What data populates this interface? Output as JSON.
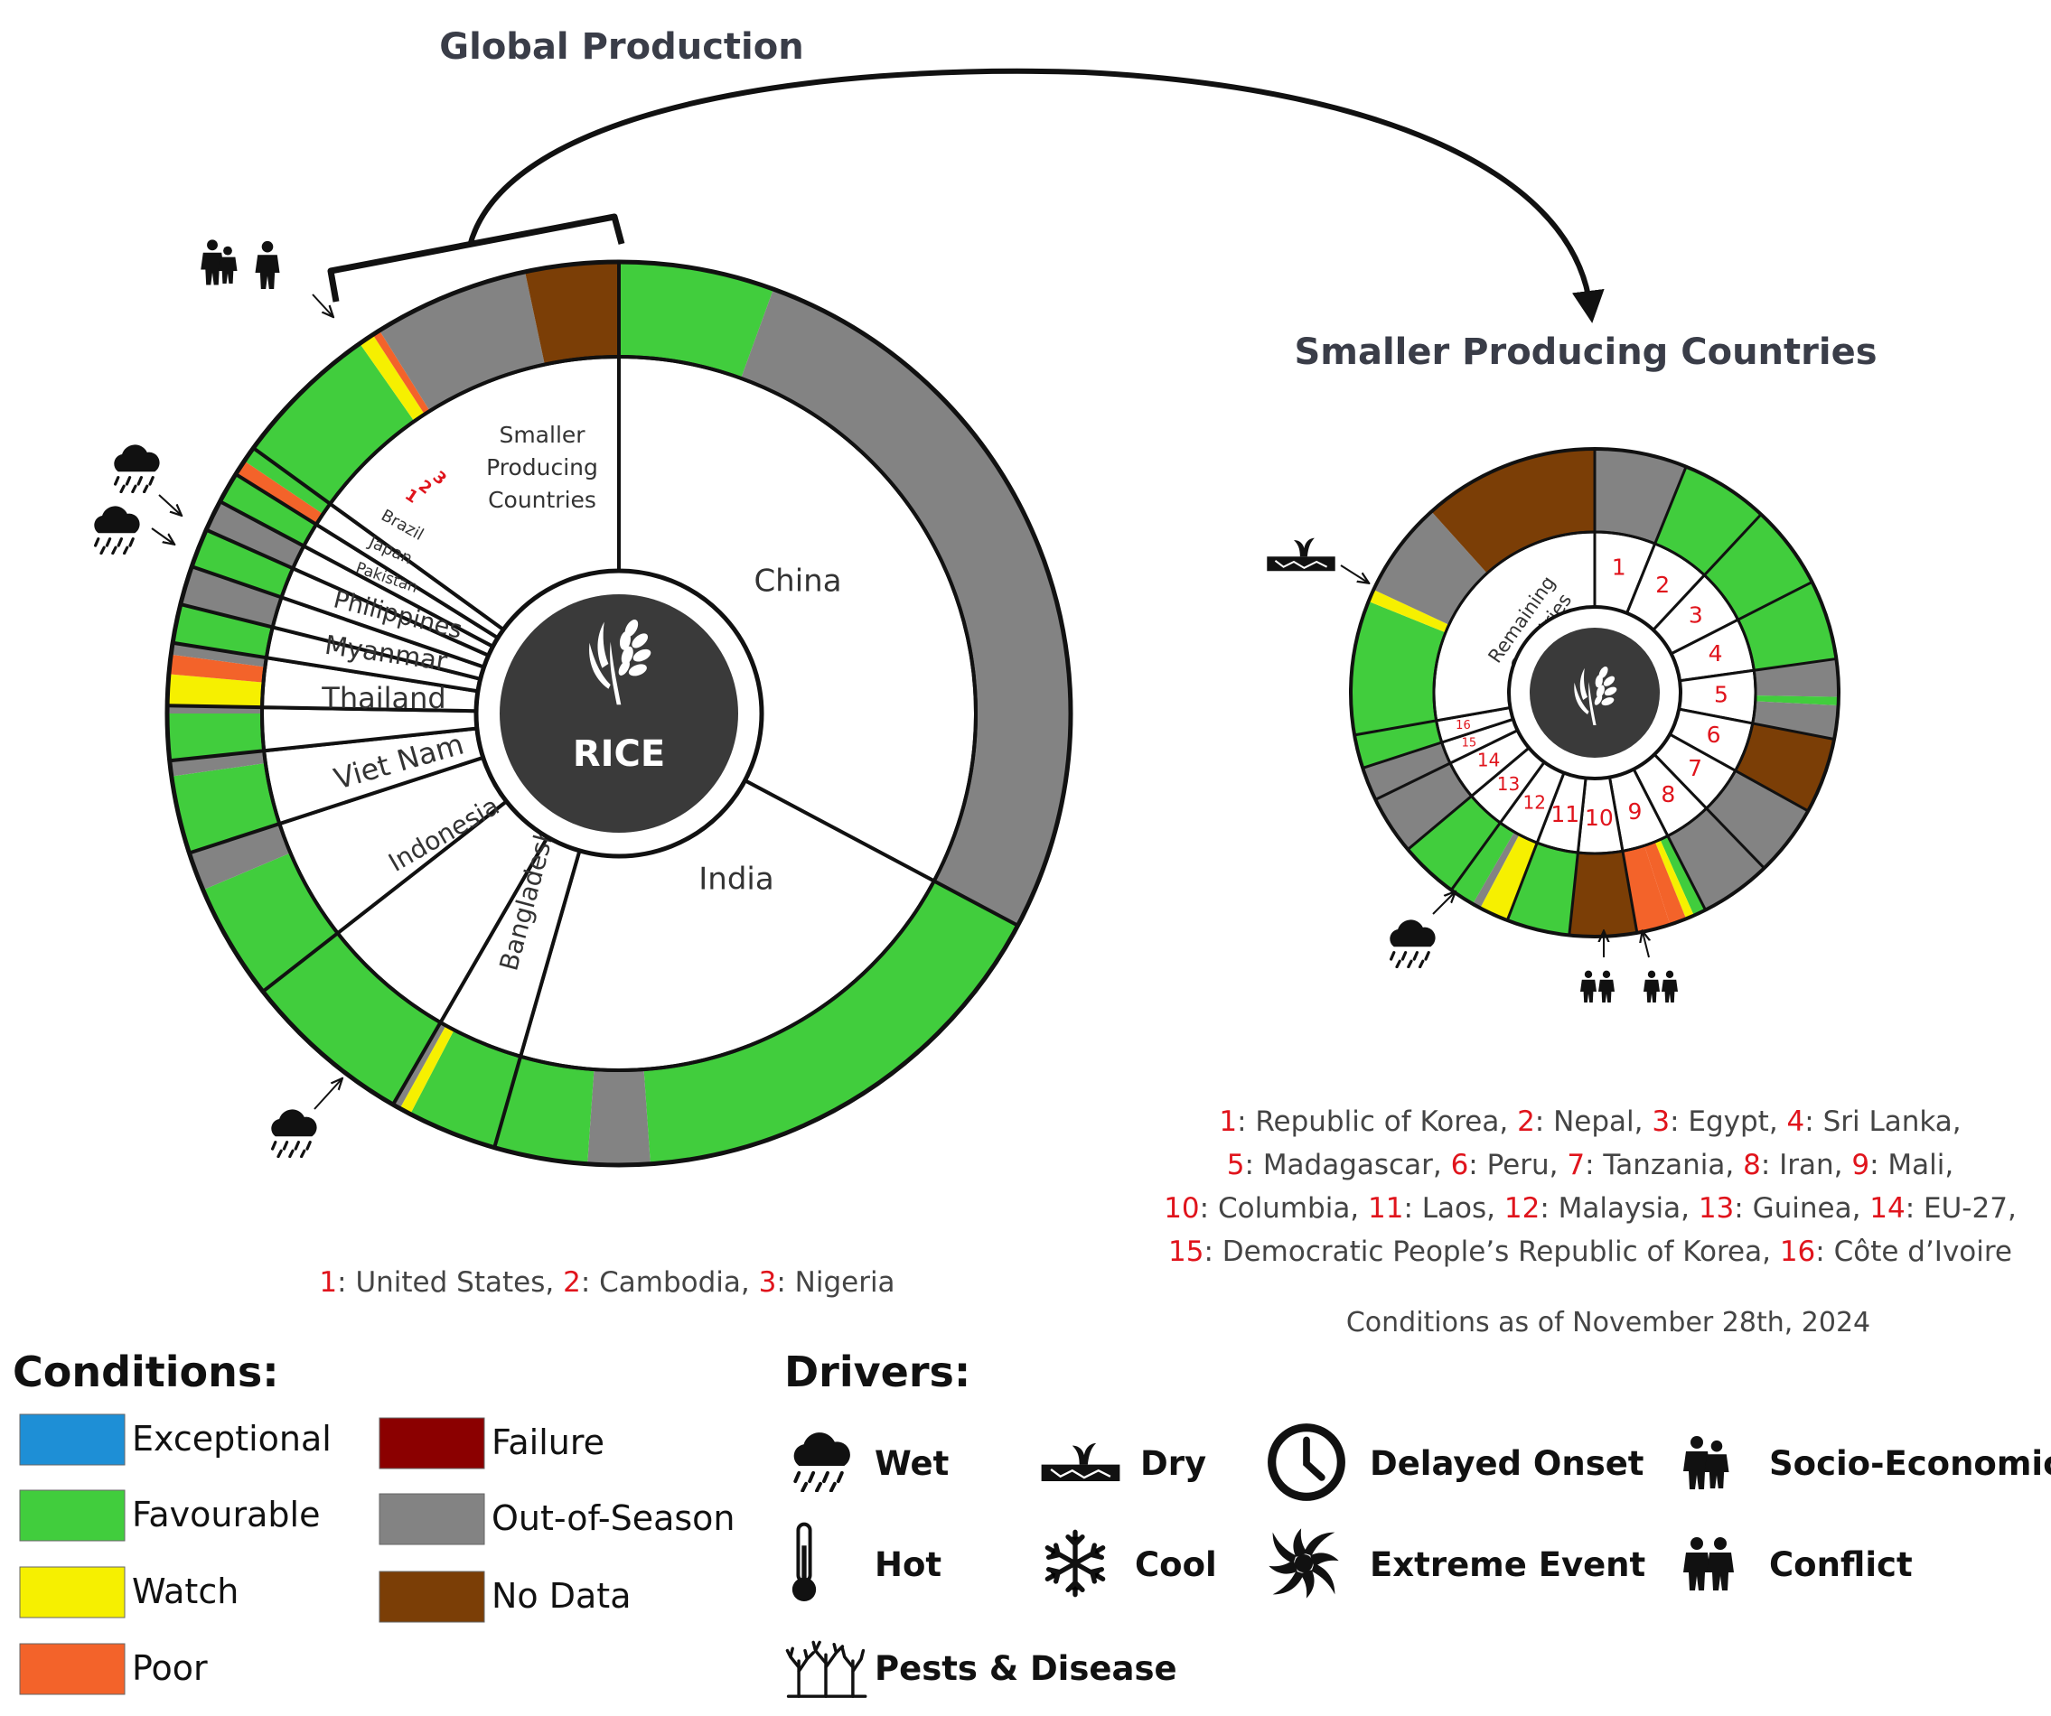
{
  "colors": {
    "exceptional": "#1e8fd6",
    "favourable": "#41cd3d",
    "watch": "#f6f000",
    "poor": "#f3632a",
    "failure": "#8b0000",
    "out_of_season": "#838383",
    "no_data": "#7b3e06",
    "center": "#3a3a3a",
    "number_red": "#e0141c"
  },
  "titles": {
    "global": "Global Production",
    "smaller": "Smaller Producing Countries",
    "center_label": "RICE"
  },
  "chart_data": [
    {
      "type": "pie",
      "name": "Global Production",
      "inner_ring_countries": [
        {
          "label": "China",
          "start_deg": 0,
          "end_deg": 118
        },
        {
          "label": "India",
          "start_deg": 118,
          "end_deg": 196
        },
        {
          "label": "Bangladesh",
          "start_deg": 196,
          "end_deg": 210
        },
        {
          "label": "Indonesia",
          "start_deg": 210,
          "end_deg": 232
        },
        {
          "label": "Viet Nam",
          "start_deg": 232,
          "end_deg": 252
        },
        {
          "label": "Thailand",
          "start_deg": 252,
          "end_deg": 264
        },
        {
          "label": "Myanmar",
          "start_deg": 264,
          "end_deg": 271
        },
        {
          "label": "Philippines",
          "start_deg": 271,
          "end_deg": 279
        },
        {
          "label": "Pakistan",
          "start_deg": 279,
          "end_deg": 284
        },
        {
          "label": "Japan",
          "start_deg": 284,
          "end_deg": 289
        },
        {
          "label": "Brazil",
          "start_deg": 289,
          "end_deg": 294
        },
        {
          "label": "1",
          "start_deg": 294,
          "end_deg": 298
        },
        {
          "label": "2",
          "start_deg": 298,
          "end_deg": 302
        },
        {
          "label": "3",
          "start_deg": 302,
          "end_deg": 306
        },
        {
          "label": "Smaller Producing Countries",
          "start_deg": 306,
          "end_deg": 360
        }
      ],
      "outer_ring_conditions": [
        {
          "start_deg": 0,
          "end_deg": 20,
          "condition": "favourable"
        },
        {
          "start_deg": 20,
          "end_deg": 118,
          "condition": "out_of_season"
        },
        {
          "start_deg": 118,
          "end_deg": 176,
          "condition": "favourable"
        },
        {
          "start_deg": 176,
          "end_deg": 184,
          "condition": "out_of_season"
        },
        {
          "start_deg": 184,
          "end_deg": 207.5,
          "condition": "favourable"
        },
        {
          "start_deg": 207.5,
          "end_deg": 209,
          "condition": "watch"
        },
        {
          "start_deg": 209,
          "end_deg": 210,
          "condition": "out_of_season"
        },
        {
          "start_deg": 210,
          "end_deg": 232,
          "condition": "favourable"
        },
        {
          "start_deg": 232,
          "end_deg": 247,
          "condition": "favourable"
        },
        {
          "start_deg": 247,
          "end_deg": 252,
          "condition": "out_of_season"
        },
        {
          "start_deg": 252,
          "end_deg": 262,
          "condition": "favourable"
        },
        {
          "start_deg": 262,
          "end_deg": 264,
          "condition": "out_of_season"
        },
        {
          "start_deg": 264,
          "end_deg": 270,
          "condition": "favourable"
        },
        {
          "start_deg": 270,
          "end_deg": 271,
          "condition": "out_of_season"
        },
        {
          "start_deg": 271,
          "end_deg": 275,
          "condition": "watch"
        },
        {
          "start_deg": 275,
          "end_deg": 277.5,
          "condition": "poor"
        },
        {
          "start_deg": 277.5,
          "end_deg": 279,
          "condition": "out_of_season"
        },
        {
          "start_deg": 279,
          "end_deg": 284,
          "condition": "favourable"
        },
        {
          "start_deg": 284,
          "end_deg": 289,
          "condition": "out_of_season"
        },
        {
          "start_deg": 289,
          "end_deg": 294,
          "condition": "favourable"
        },
        {
          "start_deg": 294,
          "end_deg": 298,
          "condition": "out_of_season"
        },
        {
          "start_deg": 298,
          "end_deg": 302,
          "condition": "favourable"
        },
        {
          "start_deg": 302,
          "end_deg": 304,
          "condition": "poor"
        },
        {
          "start_deg": 304,
          "end_deg": 306,
          "condition": "favourable"
        },
        {
          "start_deg": 306,
          "end_deg": 325,
          "condition": "favourable"
        },
        {
          "start_deg": 325,
          "end_deg": 327,
          "condition": "watch"
        },
        {
          "start_deg": 327,
          "end_deg": 328,
          "condition": "poor"
        },
        {
          "start_deg": 328,
          "end_deg": 348,
          "condition": "out_of_season"
        },
        {
          "start_deg": 348,
          "end_deg": 360,
          "condition": "no_data"
        }
      ],
      "driver_markers": [
        {
          "driver": "socio-economic",
          "at_deg": 305
        },
        {
          "driver": "conflict",
          "at_deg": 305
        },
        {
          "driver": "wet",
          "at_deg": 283
        },
        {
          "driver": "wet",
          "at_deg": 276
        },
        {
          "driver": "wet",
          "at_deg": 209
        }
      ],
      "key": [
        {
          "num": "1",
          "text": ": United States, "
        },
        {
          "num": "2",
          "text": ": Cambodia, "
        },
        {
          "num": "3",
          "text": ": Nigeria"
        }
      ]
    },
    {
      "type": "pie",
      "name": "Smaller Producing Countries",
      "inner_ring_countries": [
        {
          "label": "1",
          "start_deg": 0,
          "end_deg": 22
        },
        {
          "label": "2",
          "start_deg": 22,
          "end_deg": 43
        },
        {
          "label": "3",
          "start_deg": 43,
          "end_deg": 63
        },
        {
          "label": "4",
          "start_deg": 63,
          "end_deg": 82
        },
        {
          "label": "5",
          "start_deg": 82,
          "end_deg": 101
        },
        {
          "label": "6",
          "start_deg": 101,
          "end_deg": 119
        },
        {
          "label": "7",
          "start_deg": 119,
          "end_deg": 136
        },
        {
          "label": "8",
          "start_deg": 136,
          "end_deg": 153
        },
        {
          "label": "9",
          "start_deg": 153,
          "end_deg": 170
        },
        {
          "label": "10",
          "start_deg": 170,
          "end_deg": 186
        },
        {
          "label": "11",
          "start_deg": 186,
          "end_deg": 201
        },
        {
          "label": "12",
          "start_deg": 201,
          "end_deg": 216
        },
        {
          "label": "13",
          "start_deg": 216,
          "end_deg": 230
        },
        {
          "label": "14",
          "start_deg": 230,
          "end_deg": 244
        },
        {
          "label": "15",
          "start_deg": 244,
          "end_deg": 252
        },
        {
          "label": "16",
          "start_deg": 252,
          "end_deg": 260
        },
        {
          "label": "Remaining Countries",
          "start_deg": 260,
          "end_deg": 360
        }
      ],
      "outer_ring_conditions": [
        {
          "start_deg": 0,
          "end_deg": 22,
          "condition": "out_of_season"
        },
        {
          "start_deg": 22,
          "end_deg": 43,
          "condition": "favourable"
        },
        {
          "start_deg": 43,
          "end_deg": 63,
          "condition": "favourable"
        },
        {
          "start_deg": 63,
          "end_deg": 82,
          "condition": "favourable"
        },
        {
          "start_deg": 82,
          "end_deg": 91,
          "condition": "out_of_season"
        },
        {
          "start_deg": 91,
          "end_deg": 93,
          "condition": "favourable"
        },
        {
          "start_deg": 93,
          "end_deg": 101,
          "condition": "out_of_season"
        },
        {
          "start_deg": 101,
          "end_deg": 119,
          "condition": "no_data"
        },
        {
          "start_deg": 119,
          "end_deg": 136,
          "condition": "out_of_season"
        },
        {
          "start_deg": 136,
          "end_deg": 153,
          "condition": "out_of_season"
        },
        {
          "start_deg": 153,
          "end_deg": 156,
          "condition": "favourable"
        },
        {
          "start_deg": 156,
          "end_deg": 158,
          "condition": "watch"
        },
        {
          "start_deg": 158,
          "end_deg": 162,
          "condition": "poor"
        },
        {
          "start_deg": 162,
          "end_deg": 170,
          "condition": "poor"
        },
        {
          "start_deg": 170,
          "end_deg": 186,
          "condition": "no_data"
        },
        {
          "start_deg": 186,
          "end_deg": 201,
          "condition": "favourable"
        },
        {
          "start_deg": 201,
          "end_deg": 208,
          "condition": "watch"
        },
        {
          "start_deg": 208,
          "end_deg": 210,
          "condition": "out_of_season"
        },
        {
          "start_deg": 210,
          "end_deg": 216,
          "condition": "favourable"
        },
        {
          "start_deg": 216,
          "end_deg": 230,
          "condition": "favourable"
        },
        {
          "start_deg": 230,
          "end_deg": 244,
          "condition": "out_of_season"
        },
        {
          "start_deg": 244,
          "end_deg": 252,
          "condition": "out_of_season"
        },
        {
          "start_deg": 252,
          "end_deg": 260,
          "condition": "favourable"
        },
        {
          "start_deg": 260,
          "end_deg": 292,
          "condition": "favourable"
        },
        {
          "start_deg": 292,
          "end_deg": 295,
          "condition": "watch"
        },
        {
          "start_deg": 295,
          "end_deg": 318,
          "condition": "out_of_season"
        },
        {
          "start_deg": 318,
          "end_deg": 360,
          "condition": "no_data"
        }
      ],
      "driver_markers": [
        {
          "driver": "dry",
          "at_deg": 296
        },
        {
          "driver": "wet",
          "at_deg": 208
        },
        {
          "driver": "conflict",
          "at_deg": 167
        },
        {
          "driver": "conflict",
          "at_deg": 157
        }
      ],
      "key": [
        [
          {
            "num": "1",
            "text": ": Republic of Korea, "
          },
          {
            "num": "2",
            "text": ": Nepal, "
          },
          {
            "num": "3",
            "text": ": Egypt, "
          },
          {
            "num": "4",
            "text": ": Sri Lanka,"
          }
        ],
        [
          {
            "num": "5",
            "text": ": Madagascar, "
          },
          {
            "num": "6",
            "text": ": Peru, "
          },
          {
            "num": "7",
            "text": ": Tanzania, "
          },
          {
            "num": "8",
            "text": ": Iran, "
          },
          {
            "num": "9",
            "text": ": Mali,"
          }
        ],
        [
          {
            "num": "10",
            "text": ": Columbia, "
          },
          {
            "num": "11",
            "text": ": Laos, "
          },
          {
            "num": "12",
            "text": ": Malaysia, "
          },
          {
            "num": "13",
            "text": ": Guinea, "
          },
          {
            "num": "14",
            "text": ": EU-27,"
          }
        ],
        [
          {
            "num": "15",
            "text": ": Democratic People’s Republic of Korea, "
          },
          {
            "num": "16",
            "text": ": Côte d’Ivoire"
          }
        ]
      ]
    }
  ],
  "date_note": "Conditions as of November 28th, 2024",
  "legend": {
    "conditions_title": "Conditions:",
    "conditions": [
      {
        "key": "exceptional",
        "label": "Exceptional"
      },
      {
        "key": "favourable",
        "label": "Favourable"
      },
      {
        "key": "watch",
        "label": "Watch"
      },
      {
        "key": "poor",
        "label": "Poor"
      },
      {
        "key": "failure",
        "label": "Failure"
      },
      {
        "key": "out_of_season",
        "label": "Out-of-Season"
      },
      {
        "key": "no_data",
        "label": "No Data"
      }
    ],
    "drivers_title": "Drivers:",
    "drivers": [
      {
        "icon": "wet-icon",
        "label": "Wet"
      },
      {
        "icon": "dry-icon",
        "label": "Dry"
      },
      {
        "icon": "delayed-onset-icon",
        "label": "Delayed Onset"
      },
      {
        "icon": "socio-economic-icon",
        "label": "Socio-Economic"
      },
      {
        "icon": "hot-icon",
        "label": "Hot"
      },
      {
        "icon": "cool-icon",
        "label": "Cool"
      },
      {
        "icon": "extreme-event-icon",
        "label": "Extreme Event"
      },
      {
        "icon": "conflict-icon",
        "label": "Conflict"
      },
      {
        "icon": "pests-disease-icon",
        "label": "Pests & Disease"
      }
    ]
  }
}
